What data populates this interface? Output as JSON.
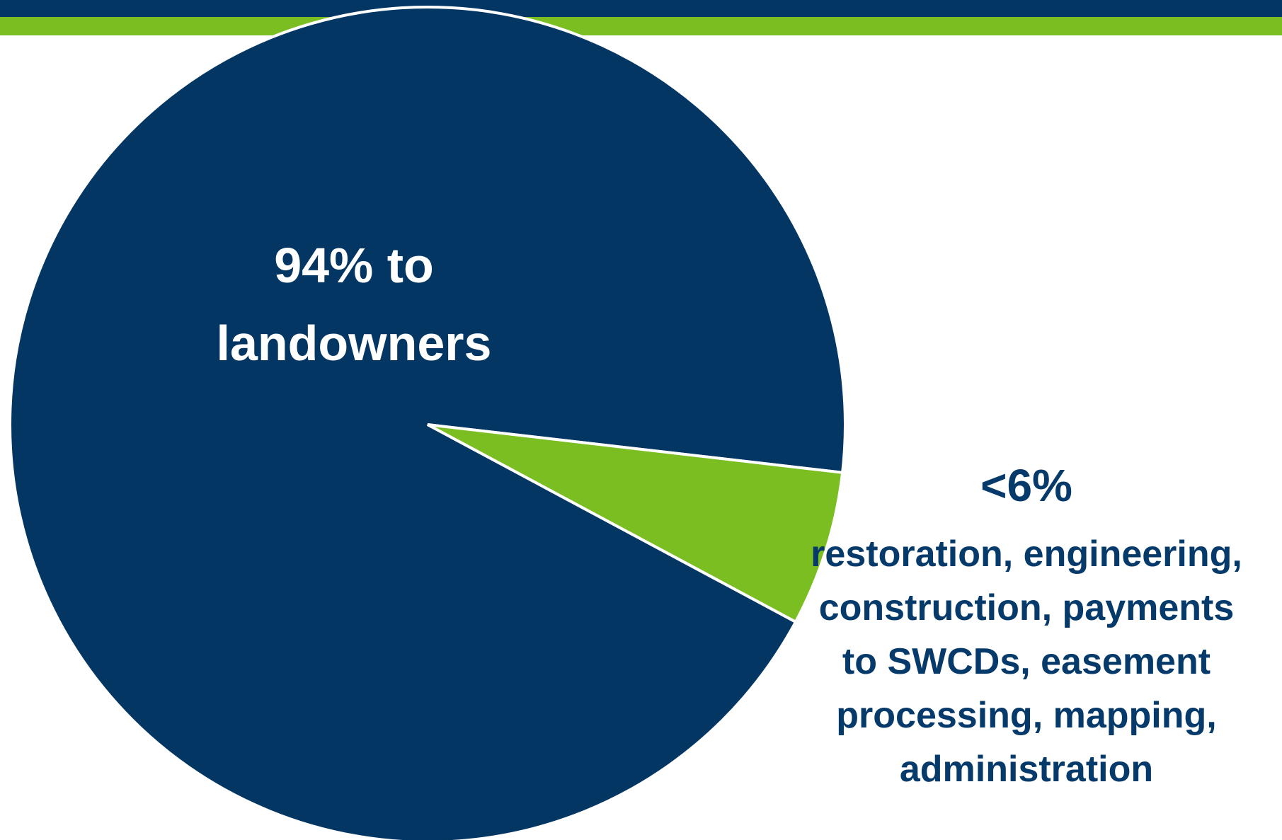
{
  "colors": {
    "navy": "#033663",
    "green": "#7abe22",
    "text_navy": "#063a6a",
    "white": "#ffffff"
  },
  "chart_data": {
    "type": "pie",
    "slices": [
      {
        "label": "94% to landowners",
        "value": 94,
        "color": "#033663"
      },
      {
        "label": "<6%",
        "value": 6,
        "color": "#7abe22"
      }
    ],
    "annotations": {
      "large_slice_lines": [
        "94% to",
        "landowners"
      ],
      "small_slice_head": "<6%",
      "small_slice_desc_lines": [
        "restoration, engineering,",
        "construction, payments",
        "to SWCDs, easement",
        "processing, mapping,",
        "administration"
      ]
    }
  }
}
